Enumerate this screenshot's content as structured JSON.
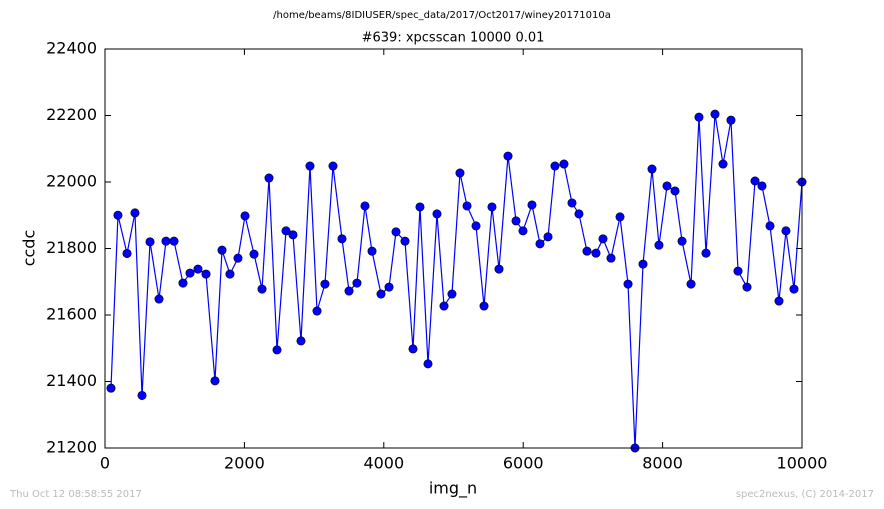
{
  "chart_data": {
    "type": "line",
    "suptitle": "/home/beams/8IDIUSER/spec_data/2017/Oct2017/winey20171010a",
    "title": "#639: xpcsscan 10000 0.01",
    "xlabel": "img_n",
    "ylabel": "ccdc",
    "footer_left": "Thu Oct 12 08:58:55 2017",
    "footer_right": "spec2nexus, (C) 2014-2017",
    "color": "#0000ff",
    "x": [
      86,
      186,
      316,
      430,
      531,
      646,
      775,
      875,
      990,
      1119,
      1220,
      1334,
      1449,
      1578,
      1679,
      1793,
      1908,
      2009,
      2138,
      2253,
      2353,
      2468,
      2597,
      2697,
      2812,
      2941,
      3042,
      3156,
      3271,
      3400,
      3501,
      3615,
      3730,
      3831,
      3960,
      4075,
      4175,
      4304,
      4419,
      4519,
      4634,
      4763,
      4864,
      4978,
      5093,
      5194,
      5323,
      5438,
      5552,
      5653,
      5782,
      5897,
      5997,
      6126,
      6241,
      6356,
      6456,
      6585,
      6700,
      6800,
      6915,
      7044,
      7145,
      7260,
      7389,
      7504,
      7604,
      7719,
      7848,
      7948,
      8063,
      8178,
      8279,
      8408,
      8522,
      8623,
      8752,
      8867,
      8981,
      9082,
      9211,
      9326,
      9426,
      9541,
      9670,
      9770,
      9885,
      10000
    ],
    "values": [
      21380,
      21900,
      21785,
      21907,
      21358,
      21820,
      21648,
      21822,
      21822,
      21696,
      21726,
      21738,
      21723,
      21402,
      21795,
      21723,
      21771,
      21898,
      21783,
      21678,
      22012,
      21495,
      21853,
      21841,
      21522,
      22048,
      21612,
      21693,
      22048,
      21829,
      21672,
      21696,
      21928,
      21792,
      21663,
      21684,
      21850,
      21822,
      21498,
      21925,
      21453,
      21904,
      21627,
      21663,
      22027,
      21928,
      21868,
      21627,
      21925,
      21738,
      22078,
      21883,
      21853,
      21931,
      21814,
      21835,
      22048,
      22054,
      21937,
      21904,
      21792,
      21786,
      21829,
      21771,
      21895,
      21693,
      21200,
      21753,
      22039,
      21810,
      21988,
      21973,
      21822,
      21693,
      22195,
      21786,
      22204,
      22054,
      22186,
      21732,
      21684,
      22003,
      21988,
      21868,
      21642,
      21853,
      21678,
      22000
    ],
    "xlim": [
      0,
      10000
    ],
    "xticks": [
      0,
      2000,
      4000,
      6000,
      8000,
      10000
    ],
    "ylim": [
      21200,
      22400
    ],
    "yticks": [
      21200,
      21400,
      21600,
      21800,
      22000,
      22200,
      22400
    ]
  }
}
